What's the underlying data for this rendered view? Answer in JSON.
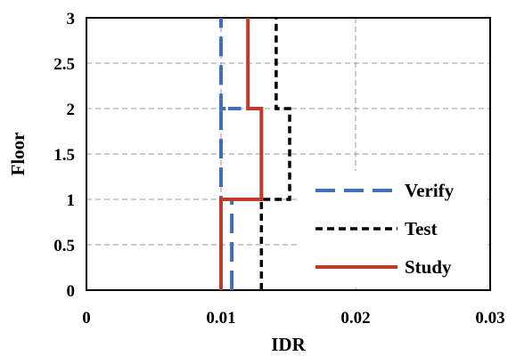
{
  "chart_data": {
    "type": "line",
    "xlabel": "IDR",
    "ylabel": "Floor",
    "xlim": [
      0,
      0.03
    ],
    "ylim": [
      0,
      3
    ],
    "xticks": [
      "0",
      "0.01",
      "0.02",
      "0.03"
    ],
    "yticks": [
      "0",
      "0.5",
      "1",
      "1.5",
      "2",
      "2.5",
      "3"
    ],
    "grid": true,
    "legend_position": "bottom-right",
    "series": [
      {
        "name": "Verify",
        "style": "long-dash",
        "color": "#3f6fb5",
        "points": [
          [
            0.0108,
            0
          ],
          [
            0.0108,
            1
          ],
          [
            0.01,
            1
          ],
          [
            0.01,
            2
          ],
          [
            0.01,
            2
          ],
          [
            0.01,
            3
          ]
        ],
        "step": [
          [
            0.0108,
            0
          ],
          [
            0.0108,
            1
          ],
          [
            0.01,
            1
          ],
          [
            0.01,
            2
          ],
          [
            0.0115,
            2
          ],
          [
            0.01,
            2
          ],
          [
            0.01,
            3
          ]
        ]
      },
      {
        "name": "Test",
        "style": "short-dash",
        "color": "#000000",
        "step": [
          [
            0.013,
            0
          ],
          [
            0.013,
            1
          ],
          [
            0.0151,
            1
          ],
          [
            0.0151,
            2
          ],
          [
            0.0141,
            2
          ],
          [
            0.0141,
            3
          ]
        ]
      },
      {
        "name": "Study",
        "style": "solid",
        "color": "#c0392b",
        "step": [
          [
            0.01,
            0
          ],
          [
            0.01,
            1
          ],
          [
            0.013,
            1
          ],
          [
            0.013,
            2
          ],
          [
            0.012,
            2
          ],
          [
            0.012,
            3
          ]
        ]
      }
    ]
  }
}
